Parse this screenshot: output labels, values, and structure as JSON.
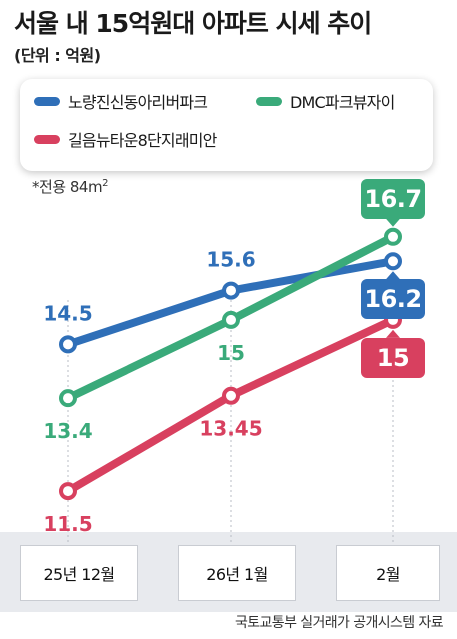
{
  "chart_data": {
    "type": "line",
    "title": "서울 내 15억원대 아파트 시세 추이",
    "subtitle": "(단위 : 억원)",
    "note_prefix": "*전용 84m",
    "note_sup": "2",
    "source": "국토교통부 실거래가 공개시스템 자료",
    "categories": [
      "25년 12월",
      "26년 1월",
      "2월"
    ],
    "ylim": [
      10.5,
      17.8
    ],
    "series": [
      {
        "name": "노량진신동아리버파크",
        "color": "#2f6fb8",
        "values": [
          14.5,
          15.6,
          16.2
        ],
        "labels": [
          "14.5",
          "15.6",
          "16.2"
        ]
      },
      {
        "name": "DMC파크뷰자이",
        "color": "#3aaa7a",
        "values": [
          13.4,
          15.0,
          16.7
        ],
        "labels": [
          "13.4",
          "15",
          "16.7"
        ]
      },
      {
        "name": "길음뉴타운8단지래미안",
        "color": "#d8405f",
        "values": [
          11.5,
          13.45,
          15.0
        ],
        "labels": [
          "11.5",
          "13.45",
          "15"
        ]
      }
    ],
    "legend_position": "top",
    "grid": false
  }
}
